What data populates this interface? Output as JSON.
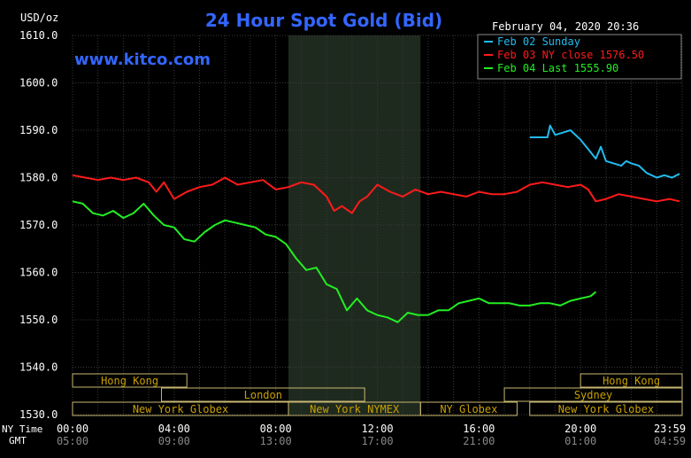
{
  "header": {
    "currency_label": "USD/oz",
    "title": "24 Hour Spot Gold (Bid)",
    "timestamp": "February 04, 2020 20:36",
    "site": "www.kitco.com"
  },
  "colors": {
    "background": "#000000",
    "title": "#3366ff",
    "grid": "#3a3a3a",
    "shade": "#1f2a1f",
    "series_feb02": "#22bbee",
    "series_feb03": "#ff1a1a",
    "series_feb04": "#22ee22",
    "session_text": "#c8a000",
    "session_border": "#c8b870"
  },
  "legend": [
    {
      "label": "Feb 02 Sunday"
    },
    {
      "label": "Feb 03 NY close 1576.50"
    },
    {
      "label": "Feb 04 Last 1555.90"
    }
  ],
  "axis_side": {
    "ny_label": "NY Time",
    "gmt_label": "GMT"
  },
  "sessions": [
    {
      "label": "Hong Kong",
      "start": 0,
      "end": 4.5,
      "row": 0
    },
    {
      "label": "Hong Kong",
      "start": 20,
      "end": 24,
      "row": 0
    },
    {
      "label": "London",
      "start": 3.5,
      "end": 11.5,
      "row": 1
    },
    {
      "label": "Sydney",
      "start": 17,
      "end": 24,
      "row": 1
    },
    {
      "label": "New York Globex",
      "start": 0,
      "end": 8.5,
      "row": 2
    },
    {
      "label": "New York NYMEX",
      "start": 8.5,
      "end": 13.7,
      "row": 2
    },
    {
      "label": "NY Globex",
      "start": 13.7,
      "end": 17.5,
      "row": 2
    },
    {
      "label": "New York Globex",
      "start": 18,
      "end": 24,
      "row": 2
    }
  ],
  "chart_data": {
    "type": "line",
    "title": "24 Hour Spot Gold (Bid)",
    "ylabel": "USD/oz",
    "ylim": [
      1530,
      1610
    ],
    "y_ticks": [
      "1610.0",
      "1600.0",
      "1590.0",
      "1580.0",
      "1570.0",
      "1560.0",
      "1550.0",
      "1540.0",
      "1530.0"
    ],
    "y_tick_values": [
      1610,
      1600,
      1590,
      1580,
      1570,
      1560,
      1550,
      1540,
      1530
    ],
    "xlim": [
      0,
      24
    ],
    "x_ticks_ny": [
      "00:00",
      "04:00",
      "08:00",
      "12:00",
      "16:00",
      "20:00",
      "23:59"
    ],
    "x_ticks_gmt": [
      "05:00",
      "09:00",
      "13:00",
      "17:00",
      "21:00",
      "01:00",
      "04:59"
    ],
    "x_tick_values": [
      0,
      4,
      8,
      12,
      16,
      20,
      24
    ],
    "shaded_range": [
      8.5,
      13.7
    ],
    "grid": true,
    "legend_position": "top-right",
    "series": [
      {
        "name": "Feb 02 Sunday",
        "x": [
          18.0,
          18.7,
          18.8,
          19.0,
          19.3,
          19.6,
          20.0,
          20.3,
          20.6,
          20.8,
          21.0,
          21.3,
          21.6,
          21.8,
          22.0,
          22.3,
          22.6,
          23.0,
          23.3,
          23.6,
          23.9
        ],
        "values": [
          1588.5,
          1588.5,
          1591.0,
          1589.0,
          1589.5,
          1590.0,
          1588.0,
          1586.0,
          1584.0,
          1586.5,
          1583.5,
          1583.0,
          1582.5,
          1583.5,
          1583.0,
          1582.5,
          1581.0,
          1580.0,
          1580.5,
          1580.0,
          1580.8
        ]
      },
      {
        "name": "Feb 03 NY close 1576.50",
        "x": [
          0.0,
          0.5,
          1.0,
          1.5,
          2.0,
          2.5,
          3.0,
          3.3,
          3.6,
          4.0,
          4.5,
          5.0,
          5.5,
          6.0,
          6.5,
          7.0,
          7.5,
          8.0,
          8.5,
          9.0,
          9.5,
          10.0,
          10.3,
          10.6,
          11.0,
          11.3,
          11.6,
          12.0,
          12.5,
          13.0,
          13.5,
          14.0,
          14.5,
          15.0,
          15.5,
          16.0,
          16.5,
          17.0,
          17.5,
          18.0,
          18.5,
          19.0,
          19.5,
          20.0,
          20.3,
          20.6,
          21.0,
          21.5,
          22.0,
          22.5,
          23.0,
          23.5,
          23.9
        ],
        "values": [
          1580.5,
          1580.0,
          1579.5,
          1580.0,
          1579.5,
          1580.0,
          1579.0,
          1577.0,
          1579.0,
          1575.5,
          1577.0,
          1578.0,
          1578.5,
          1580.0,
          1578.5,
          1579.0,
          1579.5,
          1577.5,
          1578.0,
          1579.0,
          1578.5,
          1576.0,
          1573.0,
          1574.0,
          1572.5,
          1575.0,
          1576.0,
          1578.5,
          1577.0,
          1576.0,
          1577.5,
          1576.5,
          1577.0,
          1576.5,
          1576.0,
          1577.0,
          1576.5,
          1576.5,
          1577.0,
          1578.5,
          1579.0,
          1578.5,
          1578.0,
          1578.5,
          1577.5,
          1575.0,
          1575.5,
          1576.5,
          1576.0,
          1575.5,
          1575.0,
          1575.5,
          1575.0
        ]
      },
      {
        "name": "Feb 04 Last 1555.90",
        "x": [
          0.0,
          0.4,
          0.8,
          1.2,
          1.6,
          2.0,
          2.4,
          2.8,
          3.2,
          3.6,
          4.0,
          4.4,
          4.8,
          5.2,
          5.6,
          6.0,
          6.4,
          6.8,
          7.2,
          7.6,
          8.0,
          8.4,
          8.8,
          9.2,
          9.6,
          10.0,
          10.4,
          10.8,
          11.2,
          11.6,
          12.0,
          12.4,
          12.8,
          13.2,
          13.6,
          14.0,
          14.4,
          14.8,
          15.2,
          15.6,
          16.0,
          16.4,
          16.8,
          17.2,
          17.6,
          18.0,
          18.4,
          18.8,
          19.2,
          19.6,
          20.0,
          20.4,
          20.6
        ],
        "values": [
          1575.0,
          1574.5,
          1572.5,
          1572.0,
          1573.0,
          1571.5,
          1572.5,
          1574.5,
          1572.0,
          1570.0,
          1569.5,
          1567.0,
          1566.5,
          1568.5,
          1570.0,
          1571.0,
          1570.5,
          1570.0,
          1569.5,
          1568.0,
          1567.5,
          1566.0,
          1563.0,
          1560.5,
          1561.0,
          1557.5,
          1556.5,
          1552.0,
          1554.5,
          1552.0,
          1551.0,
          1550.5,
          1549.5,
          1551.5,
          1551.0,
          1551.0,
          1552.0,
          1552.0,
          1553.5,
          1554.0,
          1554.5,
          1553.5,
          1553.5,
          1553.5,
          1553.0,
          1553.0,
          1553.5,
          1553.5,
          1553.0,
          1554.0,
          1554.5,
          1555.0,
          1555.9
        ]
      }
    ]
  }
}
